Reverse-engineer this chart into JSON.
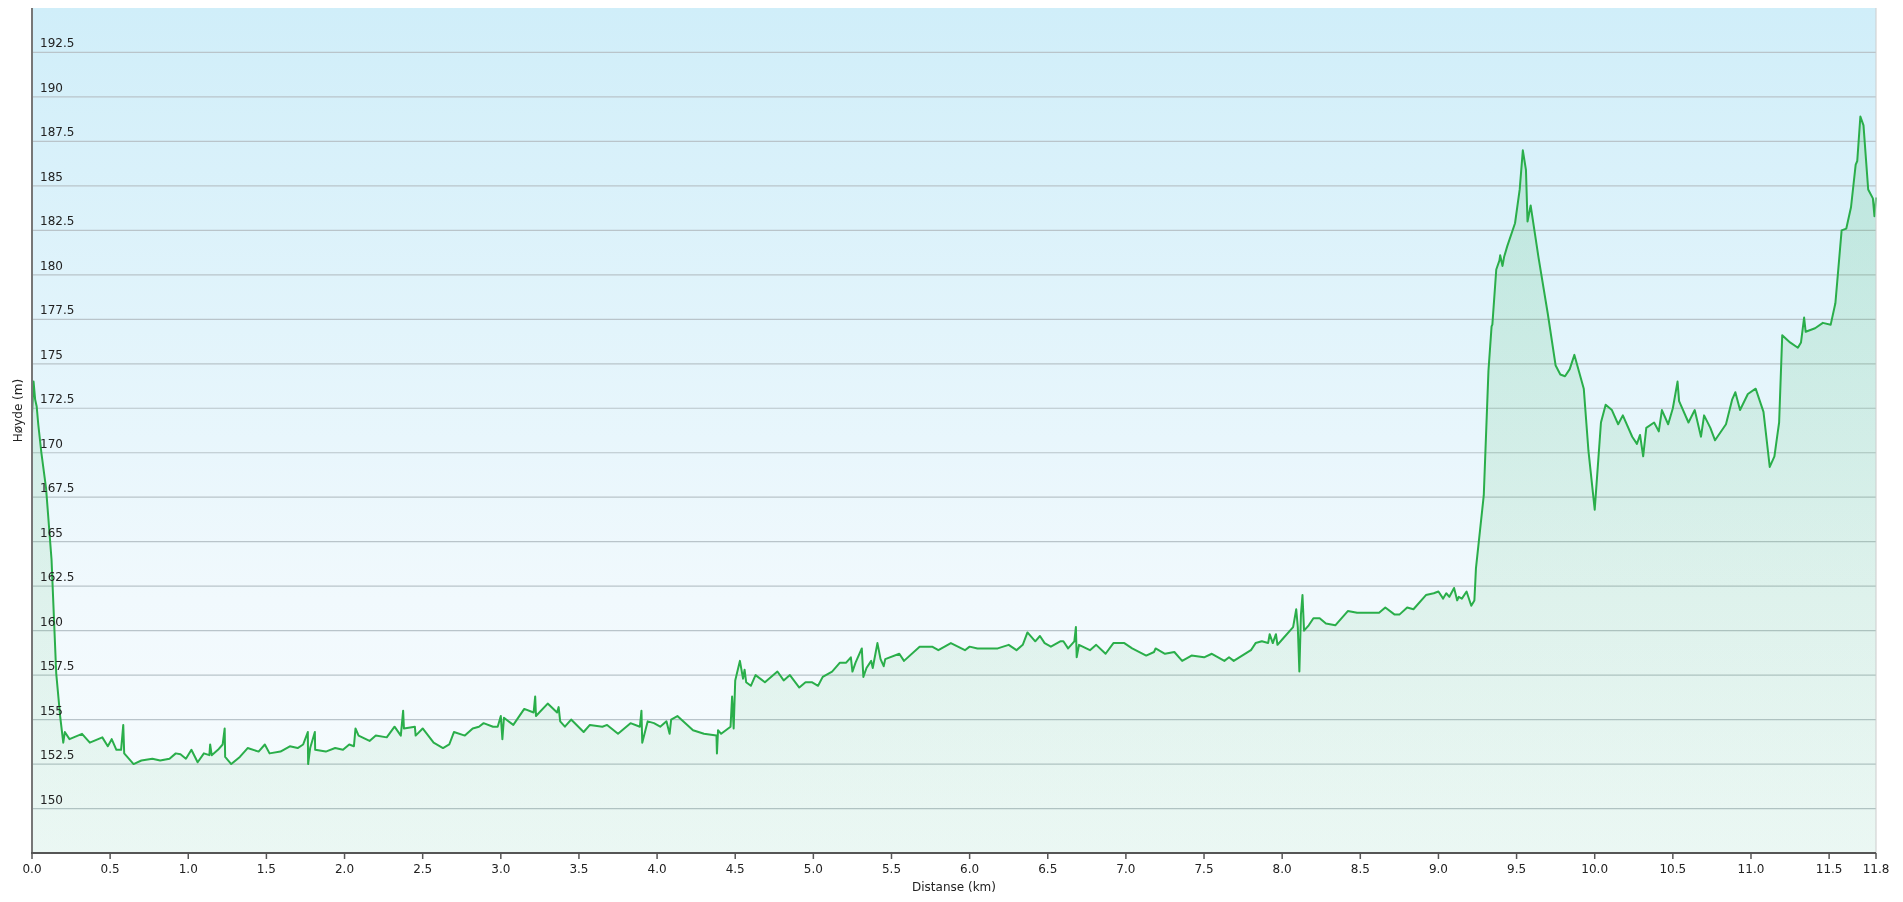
{
  "chart_data": {
    "type": "area",
    "xlabel": "Distanse (km)",
    "ylabel": "Høyde (m)",
    "xlim": [
      0,
      11.8
    ],
    "ylim": [
      147.5,
      195
    ],
    "xticks": [
      {
        "value": 0,
        "label": "0.0"
      },
      0.5,
      {
        "value": 1,
        "label": "1.0"
      },
      1.5,
      {
        "value": 2,
        "label": "2.0"
      },
      2.5,
      {
        "value": 3,
        "label": "3.0"
      },
      3.5,
      {
        "value": 4,
        "label": "4.0"
      },
      4.5,
      {
        "value": 5,
        "label": "5.0"
      },
      5.5,
      {
        "value": 6,
        "label": "6.0"
      },
      6.5,
      {
        "value": 7,
        "label": "7.0"
      },
      7.5,
      {
        "value": 8,
        "label": "8.0"
      },
      8.5,
      {
        "value": 9,
        "label": "9.0"
      },
      9.5,
      {
        "value": 10,
        "label": "10.0"
      },
      10.5,
      {
        "value": 11,
        "label": "11.0"
      },
      11.5,
      11.8
    ],
    "yticks": [
      150,
      152.5,
      155,
      157.5,
      160,
      162.5,
      165,
      167.5,
      170,
      172.5,
      175,
      177.5,
      180,
      182.5,
      185,
      187.5,
      190,
      192.5
    ],
    "grid": "y",
    "series": [
      {
        "color": "#2aae4a",
        "x": [
          0,
          0.01,
          0.02,
          0.03,
          0.04,
          0.06,
          0.09,
          0.125,
          0.155,
          0.18,
          0.2,
          0.21,
          0.24,
          0.32,
          0.37,
          0.45,
          0.485,
          0.51,
          0.54,
          0.57,
          0.584,
          0.59,
          0.65,
          0.7,
          0.77,
          0.82,
          0.88,
          0.92,
          0.95,
          0.985,
          1.02,
          1.06,
          1.1,
          1.135,
          1.14,
          1.15,
          1.19,
          1.22,
          1.233,
          1.236,
          1.275,
          1.33,
          1.38,
          1.45,
          1.49,
          1.52,
          1.59,
          1.65,
          1.7,
          1.735,
          1.765,
          1.767,
          1.78,
          1.81,
          1.812,
          1.88,
          1.94,
          1.99,
          2.03,
          2.06,
          2.07,
          2.09,
          2.16,
          2.2,
          2.27,
          2.32,
          2.36,
          2.375,
          2.38,
          2.45,
          2.455,
          2.5,
          2.57,
          2.63,
          2.67,
          2.7,
          2.77,
          2.82,
          2.86,
          2.89,
          2.95,
          2.98,
          3.0,
          3.01,
          3.02,
          3.08,
          3.15,
          3.21,
          3.22,
          3.225,
          3.3,
          3.36,
          3.37,
          3.38,
          3.41,
          3.45,
          3.53,
          3.57,
          3.65,
          3.68,
          3.75,
          3.83,
          3.89,
          3.9,
          3.905,
          3.94,
          3.98,
          4.02,
          4.06,
          4.08,
          4.09,
          4.13,
          4.23,
          4.3,
          4.38,
          4.383,
          4.39,
          4.41,
          4.47,
          4.48,
          4.49,
          4.5,
          4.53,
          4.55,
          4.56,
          4.57,
          4.6,
          4.63,
          4.69,
          4.77,
          4.81,
          4.85,
          4.91,
          4.95,
          4.99,
          5.03,
          5.06,
          5.12,
          5.17,
          5.21,
          5.24,
          5.25,
          5.27,
          5.31,
          5.32,
          5.34,
          5.37,
          5.38,
          5.41,
          5.43,
          5.45,
          5.46,
          5.55,
          5.58,
          5.68,
          5.76,
          5.8,
          5.88,
          5.97,
          6.0,
          6.05,
          6.18,
          6.25,
          6.3,
          6.34,
          6.37,
          6.42,
          6.45,
          6.48,
          6.52,
          6.58,
          6.6,
          6.63,
          6.67,
          6.68,
          6.685,
          6.7,
          6.77,
          6.81,
          6.87,
          6.92,
          6.99,
          7.04,
          7.13,
          7.18,
          7.19,
          7.25,
          7.31,
          7.36,
          7.42,
          7.5,
          7.55,
          7.63,
          7.66,
          7.69,
          7.8,
          7.83,
          7.87,
          7.91,
          7.92,
          7.94,
          7.96,
          7.97,
          8.0,
          8.07,
          8.09,
          8.1,
          8.11,
          8.12,
          8.13,
          8.14,
          8.17,
          8.2,
          8.24,
          8.28,
          8.34,
          8.42,
          8.48,
          8.54,
          8.62,
          8.66,
          8.72,
          8.75,
          8.8,
          8.84,
          8.92,
          8.97,
          9.0,
          9.03,
          9.05,
          9.07,
          9.1,
          9.12,
          9.13,
          9.15,
          9.18,
          9.21,
          9.23,
          9.24,
          9.29,
          9.32,
          9.34,
          9.345,
          9.37,
          9.39,
          9.395,
          9.41,
          9.42,
          9.44,
          9.49,
          9.52,
          9.54,
          9.56,
          9.57,
          9.59,
          9.64,
          9.7,
          9.75,
          9.78,
          9.81,
          9.84,
          9.87,
          9.93,
          9.96,
          10.0,
          10.04,
          10.07,
          10.11,
          10.15,
          10.18,
          10.24,
          10.27,
          10.29,
          10.31,
          10.33,
          10.38,
          10.41,
          10.43,
          10.47,
          10.5,
          10.53,
          10.54,
          10.6,
          10.64,
          10.68,
          10.7,
          10.74,
          10.77,
          10.84,
          10.88,
          10.9,
          10.93,
          10.98,
          11.03,
          11.08,
          11.12,
          11.15,
          11.18,
          11.2,
          11.25,
          11.3,
          11.32,
          11.34,
          11.35,
          11.41,
          11.46,
          11.51,
          11.54,
          11.58,
          11.61,
          11.64,
          11.67,
          11.68,
          11.7,
          11.72,
          11.75,
          11.78,
          11.79,
          11.8
        ],
        "values": [
          172.2,
          174.0,
          173.0,
          172.6,
          171.6,
          170.0,
          168.0,
          164.0,
          157.6,
          155.2,
          153.7,
          154.3,
          153.9,
          154.2,
          153.7,
          154.0,
          153.5,
          153.9,
          153.3,
          153.3,
          154.7,
          153.1,
          152.5,
          152.7,
          152.8,
          152.7,
          152.8,
          153.1,
          153.05,
          152.8,
          153.3,
          152.6,
          153.1,
          153.0,
          153.6,
          153.0,
          153.3,
          153.6,
          154.5,
          152.9,
          152.5,
          152.9,
          153.4,
          153.2,
          153.6,
          153.1,
          153.2,
          153.5,
          153.4,
          153.6,
          154.3,
          152.5,
          153.4,
          154.3,
          153.3,
          153.2,
          153.4,
          153.3,
          153.6,
          153.5,
          154.5,
          154.1,
          153.8,
          154.1,
          154.0,
          154.6,
          154.1,
          155.5,
          154.5,
          154.6,
          154.1,
          154.5,
          153.7,
          153.4,
          153.6,
          154.3,
          154.1,
          154.5,
          154.6,
          154.8,
          154.6,
          154.6,
          155.2,
          153.9,
          155.1,
          154.7,
          155.6,
          155.4,
          156.3,
          155.2,
          155.9,
          155.4,
          155.7,
          154.9,
          154.6,
          155.0,
          154.3,
          154.7,
          154.6,
          154.7,
          154.2,
          154.8,
          154.6,
          155.5,
          153.7,
          154.9,
          154.8,
          154.6,
          154.9,
          154.2,
          155.0,
          155.2,
          154.4,
          154.2,
          154.1,
          153.1,
          154.4,
          154.2,
          154.6,
          156.3,
          154.5,
          157.2,
          158.3,
          157.3,
          157.8,
          157.1,
          156.9,
          157.5,
          157.1,
          157.7,
          157.2,
          157.5,
          156.8,
          157.1,
          157.1,
          156.9,
          157.4,
          157.7,
          158.2,
          158.2,
          158.5,
          157.7,
          158.2,
          159.0,
          157.4,
          157.9,
          158.3,
          157.9,
          159.3,
          158.4,
          158.0,
          158.4,
          158.7,
          158.3,
          159.1,
          159.1,
          158.9,
          159.3,
          158.9,
          159.1,
          159.0,
          159.0,
          159.2,
          158.9,
          159.2,
          159.9,
          159.4,
          159.7,
          159.3,
          159.1,
          159.4,
          159.4,
          159.0,
          159.4,
          160.2,
          158.5,
          159.2,
          158.9,
          159.2,
          158.7,
          159.3,
          159.3,
          159.0,
          158.6,
          158.8,
          159.0,
          158.7,
          158.8,
          158.3,
          158.6,
          158.5,
          158.7,
          158.3,
          158.5,
          158.3,
          158.9,
          159.3,
          159.4,
          159.3,
          159.8,
          159.3,
          159.8,
          159.2,
          159.5,
          160.2,
          161.2,
          160.2,
          157.7,
          160.9,
          162.0,
          160.0,
          160.3,
          160.7,
          160.7,
          160.4,
          160.3,
          161.1,
          161.0,
          161.0,
          161.0,
          161.3,
          160.9,
          160.9,
          161.3,
          161.2,
          162.0,
          162.1,
          162.2,
          161.8,
          162.1,
          161.9,
          162.4,
          161.7,
          161.9,
          161.8,
          162.2,
          161.4,
          161.7,
          163.5,
          167.6,
          174.6,
          177.1,
          177.2,
          180.3,
          180.8,
          181.1,
          180.5,
          181.0,
          181.6,
          182.9,
          184.8,
          187.0,
          185.9,
          183.0,
          183.9,
          181.0,
          177.8,
          174.9,
          174.4,
          174.3,
          174.7,
          175.5,
          173.6,
          170.1,
          166.8,
          171.7,
          172.7,
          172.4,
          171.6,
          172.1,
          170.9,
          170.5,
          171.0,
          169.8,
          171.4,
          171.7,
          171.2,
          172.4,
          171.6,
          172.5,
          174.0,
          172.9,
          171.7,
          172.4,
          170.9,
          172.1,
          171.4,
          170.7,
          171.6,
          173.0,
          173.4,
          172.4,
          173.3,
          173.6,
          172.3,
          169.2,
          169.8,
          171.7,
          176.6,
          176.2,
          175.9,
          176.2,
          177.6,
          176.8,
          177.0,
          177.3,
          177.2,
          178.4,
          182.5,
          182.6,
          183.8,
          186.2,
          186.4,
          188.9,
          188.4,
          184.8,
          184.3,
          183.3,
          184.3
        ]
      }
    ]
  }
}
